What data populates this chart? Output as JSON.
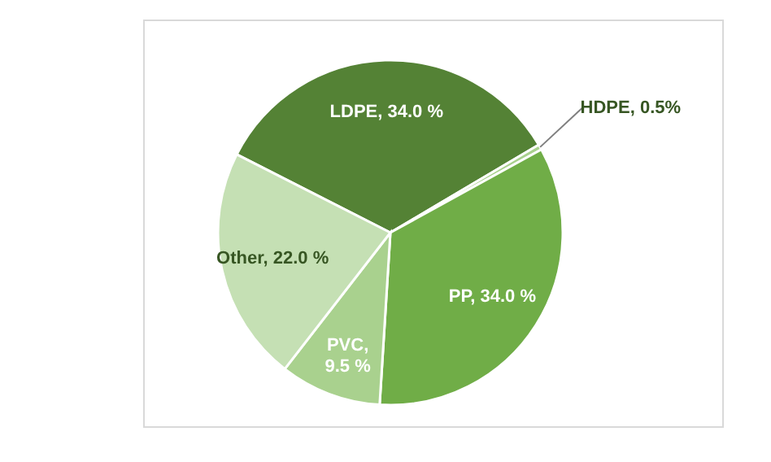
{
  "chart_data": {
    "type": "pie",
    "categories": [
      "LDPE",
      "HDPE",
      "PP",
      "PVC",
      "Other"
    ],
    "values": [
      34.0,
      0.5,
      34.0,
      9.5,
      22.0
    ],
    "colors": [
      "#548235",
      "#a9d18e",
      "#70ad47",
      "#a9d18e",
      "#c5e0b4"
    ],
    "value_labels": [
      ", 34.0 %",
      ", 0.5%",
      ", 34.0 %",
      ", 9.5 %",
      ", 22.0 %"
    ]
  }
}
